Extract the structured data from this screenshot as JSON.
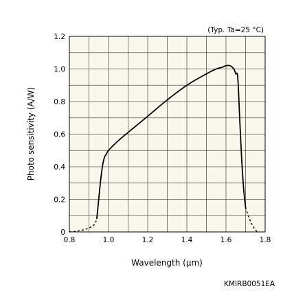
{
  "chart_data": {
    "type": "line",
    "annotation": "(Typ. Ta=25 °C)",
    "xlabel": "Wavelength (µm)",
    "ylabel": "Photo sensitivity (A/W)",
    "xlim": [
      0.8,
      1.8
    ],
    "ylim": [
      0,
      1.2
    ],
    "x_ticks": [
      "0.8",
      "1.0",
      "1.2",
      "1.4",
      "1.6",
      "1.8"
    ],
    "y_ticks": [
      "0",
      "0.2",
      "0.4",
      "0.6",
      "0.8",
      "1.0",
      "1.2"
    ],
    "grid": true,
    "grid_divisions": {
      "x": 10,
      "y": 12
    },
    "series": [
      {
        "style": "solid",
        "x": [
          0.94,
          0.95,
          0.96,
          0.97,
          0.98,
          0.99,
          1.0,
          1.05,
          1.1,
          1.2,
          1.3,
          1.4,
          1.5,
          1.55,
          1.58,
          1.6,
          1.62,
          1.64,
          1.65,
          1.66,
          1.67,
          1.68,
          1.69,
          1.7
        ],
        "y": [
          0.08,
          0.2,
          0.32,
          0.41,
          0.46,
          0.48,
          0.5,
          0.56,
          0.61,
          0.71,
          0.81,
          0.9,
          0.97,
          1.0,
          1.01,
          1.02,
          1.02,
          1.0,
          0.97,
          0.95,
          0.7,
          0.45,
          0.27,
          0.15
        ]
      },
      {
        "style": "dashed",
        "x": [
          0.8,
          0.84,
          0.88,
          0.91,
          0.93,
          0.94
        ],
        "y": [
          0.0,
          0.005,
          0.015,
          0.03,
          0.05,
          0.08
        ]
      },
      {
        "style": "dashed",
        "x": [
          1.7,
          1.72,
          1.74,
          1.76
        ],
        "y": [
          0.15,
          0.08,
          0.03,
          0.0
        ]
      }
    ]
  },
  "figure_code": "KMIRB0051EA"
}
